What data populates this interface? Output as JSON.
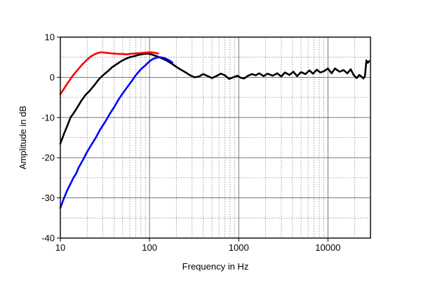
{
  "chart_data": {
    "type": "line",
    "xscale": "log",
    "xlim": [
      10,
      30000
    ],
    "ylim": [
      -40,
      10
    ],
    "xlabel": "Frequency in Hz",
    "ylabel": "Amplitude in dB",
    "x_ticks": [
      10,
      100,
      1000,
      10000
    ],
    "x_tick_labels": [
      "10",
      "100",
      "1000",
      "10000"
    ],
    "y_ticks": [
      -40,
      -30,
      -20,
      -10,
      0,
      10
    ],
    "y_tick_labels": [
      "-40",
      "-30",
      "-20",
      "-10",
      "0",
      "10"
    ],
    "grid": true,
    "legend": "none",
    "series": [
      {
        "color": "#000000",
        "x": [
          10,
          11,
          12,
          13,
          14,
          15,
          17,
          19,
          21,
          24,
          27,
          30,
          34,
          38,
          43,
          48,
          54,
          60,
          68,
          76,
          85,
          95,
          105,
          115,
          125,
          135,
          145,
          160,
          180,
          200,
          220,
          250,
          280,
          320,
          360,
          400,
          450,
          500,
          560,
          630,
          700,
          780,
          870,
          970,
          1050,
          1150,
          1250,
          1400,
          1550,
          1700,
          1900,
          2100,
          2400,
          2700,
          3000,
          3300,
          3700,
          4100,
          4500,
          5000,
          5600,
          6200,
          6800,
          7500,
          8200,
          9000,
          10000,
          11000,
          12000,
          13500,
          15000,
          16500,
          18000,
          19500,
          21000,
          22500,
          24000,
          25000,
          26000,
          27000,
          28000,
          29000
        ],
        "y": [
          -16.5,
          -14,
          -12,
          -10,
          -9,
          -8,
          -6,
          -4.5,
          -3.5,
          -2,
          -0.5,
          0.5,
          1.5,
          2.5,
          3.3,
          4,
          4.6,
          5,
          5.3,
          5.6,
          5.8,
          5.9,
          5.7,
          5.4,
          5.1,
          4.8,
          4.5,
          4.0,
          3.3,
          2.6,
          2.0,
          1.3,
          0.6,
          0.0,
          0.2,
          0.8,
          0.3,
          -0.2,
          0.3,
          0.9,
          0.5,
          -0.4,
          0.0,
          0.4,
          -0.1,
          -0.3,
          0.3,
          0.8,
          0.5,
          1.0,
          0.3,
          0.9,
          0.4,
          1.0,
          0.2,
          1.2,
          0.6,
          1.4,
          0.3,
          1.3,
          0.8,
          1.7,
          0.9,
          1.9,
          1.2,
          1.5,
          2.2,
          1.0,
          2.2,
          1.4,
          1.8,
          1.0,
          2.0,
          0.5,
          -0.2,
          0.6,
          0.1,
          -0.3,
          0.3,
          4.2,
          3.6,
          4.0
        ]
      },
      {
        "color": "#ff0000",
        "x": [
          10,
          11,
          12,
          13,
          14,
          15,
          16,
          17,
          18,
          19,
          20,
          22,
          24,
          26,
          28,
          30,
          33,
          36,
          40,
          45,
          50,
          55,
          60,
          67,
          75,
          85,
          95,
          105,
          115,
          125
        ],
        "y": [
          -4.2,
          -2.8,
          -1.5,
          -0.4,
          0.6,
          1.4,
          2.1,
          2.8,
          3.4,
          3.9,
          4.4,
          5.2,
          5.7,
          6.0,
          6.2,
          6.2,
          6.1,
          6.0,
          5.9,
          5.8,
          5.8,
          5.7,
          5.8,
          5.9,
          6.0,
          6.1,
          6.2,
          6.2,
          6.1,
          5.9
        ]
      },
      {
        "color": "#0000ff",
        "x": [
          10,
          11,
          12,
          13,
          14,
          15,
          16,
          18,
          20,
          22,
          25,
          28,
          32,
          36,
          40,
          45,
          50,
          56,
          63,
          70,
          80,
          90,
          100,
          110,
          120,
          130,
          140,
          150,
          160,
          170,
          180
        ],
        "y": [
          -32.5,
          -30,
          -28,
          -26.5,
          -25,
          -24,
          -22.5,
          -20.5,
          -18.5,
          -17,
          -15,
          -13,
          -11,
          -9,
          -7.5,
          -5.5,
          -4,
          -2.5,
          -1,
          0.5,
          2,
          3,
          4,
          4.6,
          4.9,
          5.0,
          4.9,
          4.7,
          4.4,
          4.1,
          3.7
        ]
      }
    ]
  }
}
